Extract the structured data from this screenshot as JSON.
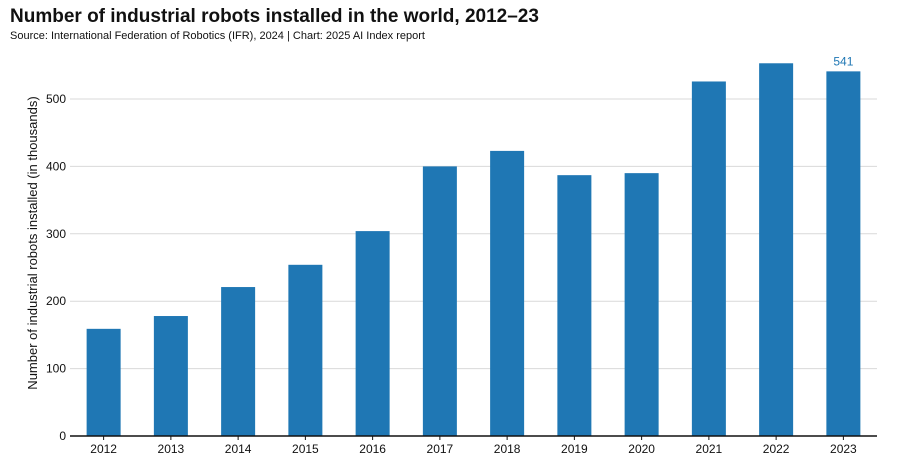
{
  "header": {
    "title": "Number of industrial robots installed in the world, 2012–23",
    "subtitle": "Source: International Federation of Robotics (IFR), 2024 | Chart: 2025 AI Index report"
  },
  "chart_data": {
    "type": "bar",
    "title": "Number of industrial robots installed in the world, 2012–23",
    "subtitle": "Source: International Federation of Robotics (IFR), 2024 | Chart: 2025 AI Index report",
    "xlabel": "",
    "ylabel": "Number of industrial robots installed (in thousands)",
    "categories": [
      "2012",
      "2013",
      "2014",
      "2015",
      "2016",
      "2017",
      "2018",
      "2019",
      "2020",
      "2021",
      "2022",
      "2023"
    ],
    "values": [
      159,
      178,
      221,
      254,
      304,
      400,
      423,
      387,
      390,
      526,
      553,
      541
    ],
    "data_labels": [
      null,
      null,
      null,
      null,
      null,
      null,
      null,
      null,
      null,
      null,
      null,
      "541"
    ],
    "ylim": [
      0,
      600
    ],
    "yticks": [
      0,
      100,
      200,
      300,
      400,
      500
    ],
    "grid": "y",
    "legend": "none",
    "colors": {
      "bar": "#1f77b4",
      "grid": "#d9d9d9",
      "axis": "#111111",
      "data_label": "#1f77b4"
    }
  }
}
